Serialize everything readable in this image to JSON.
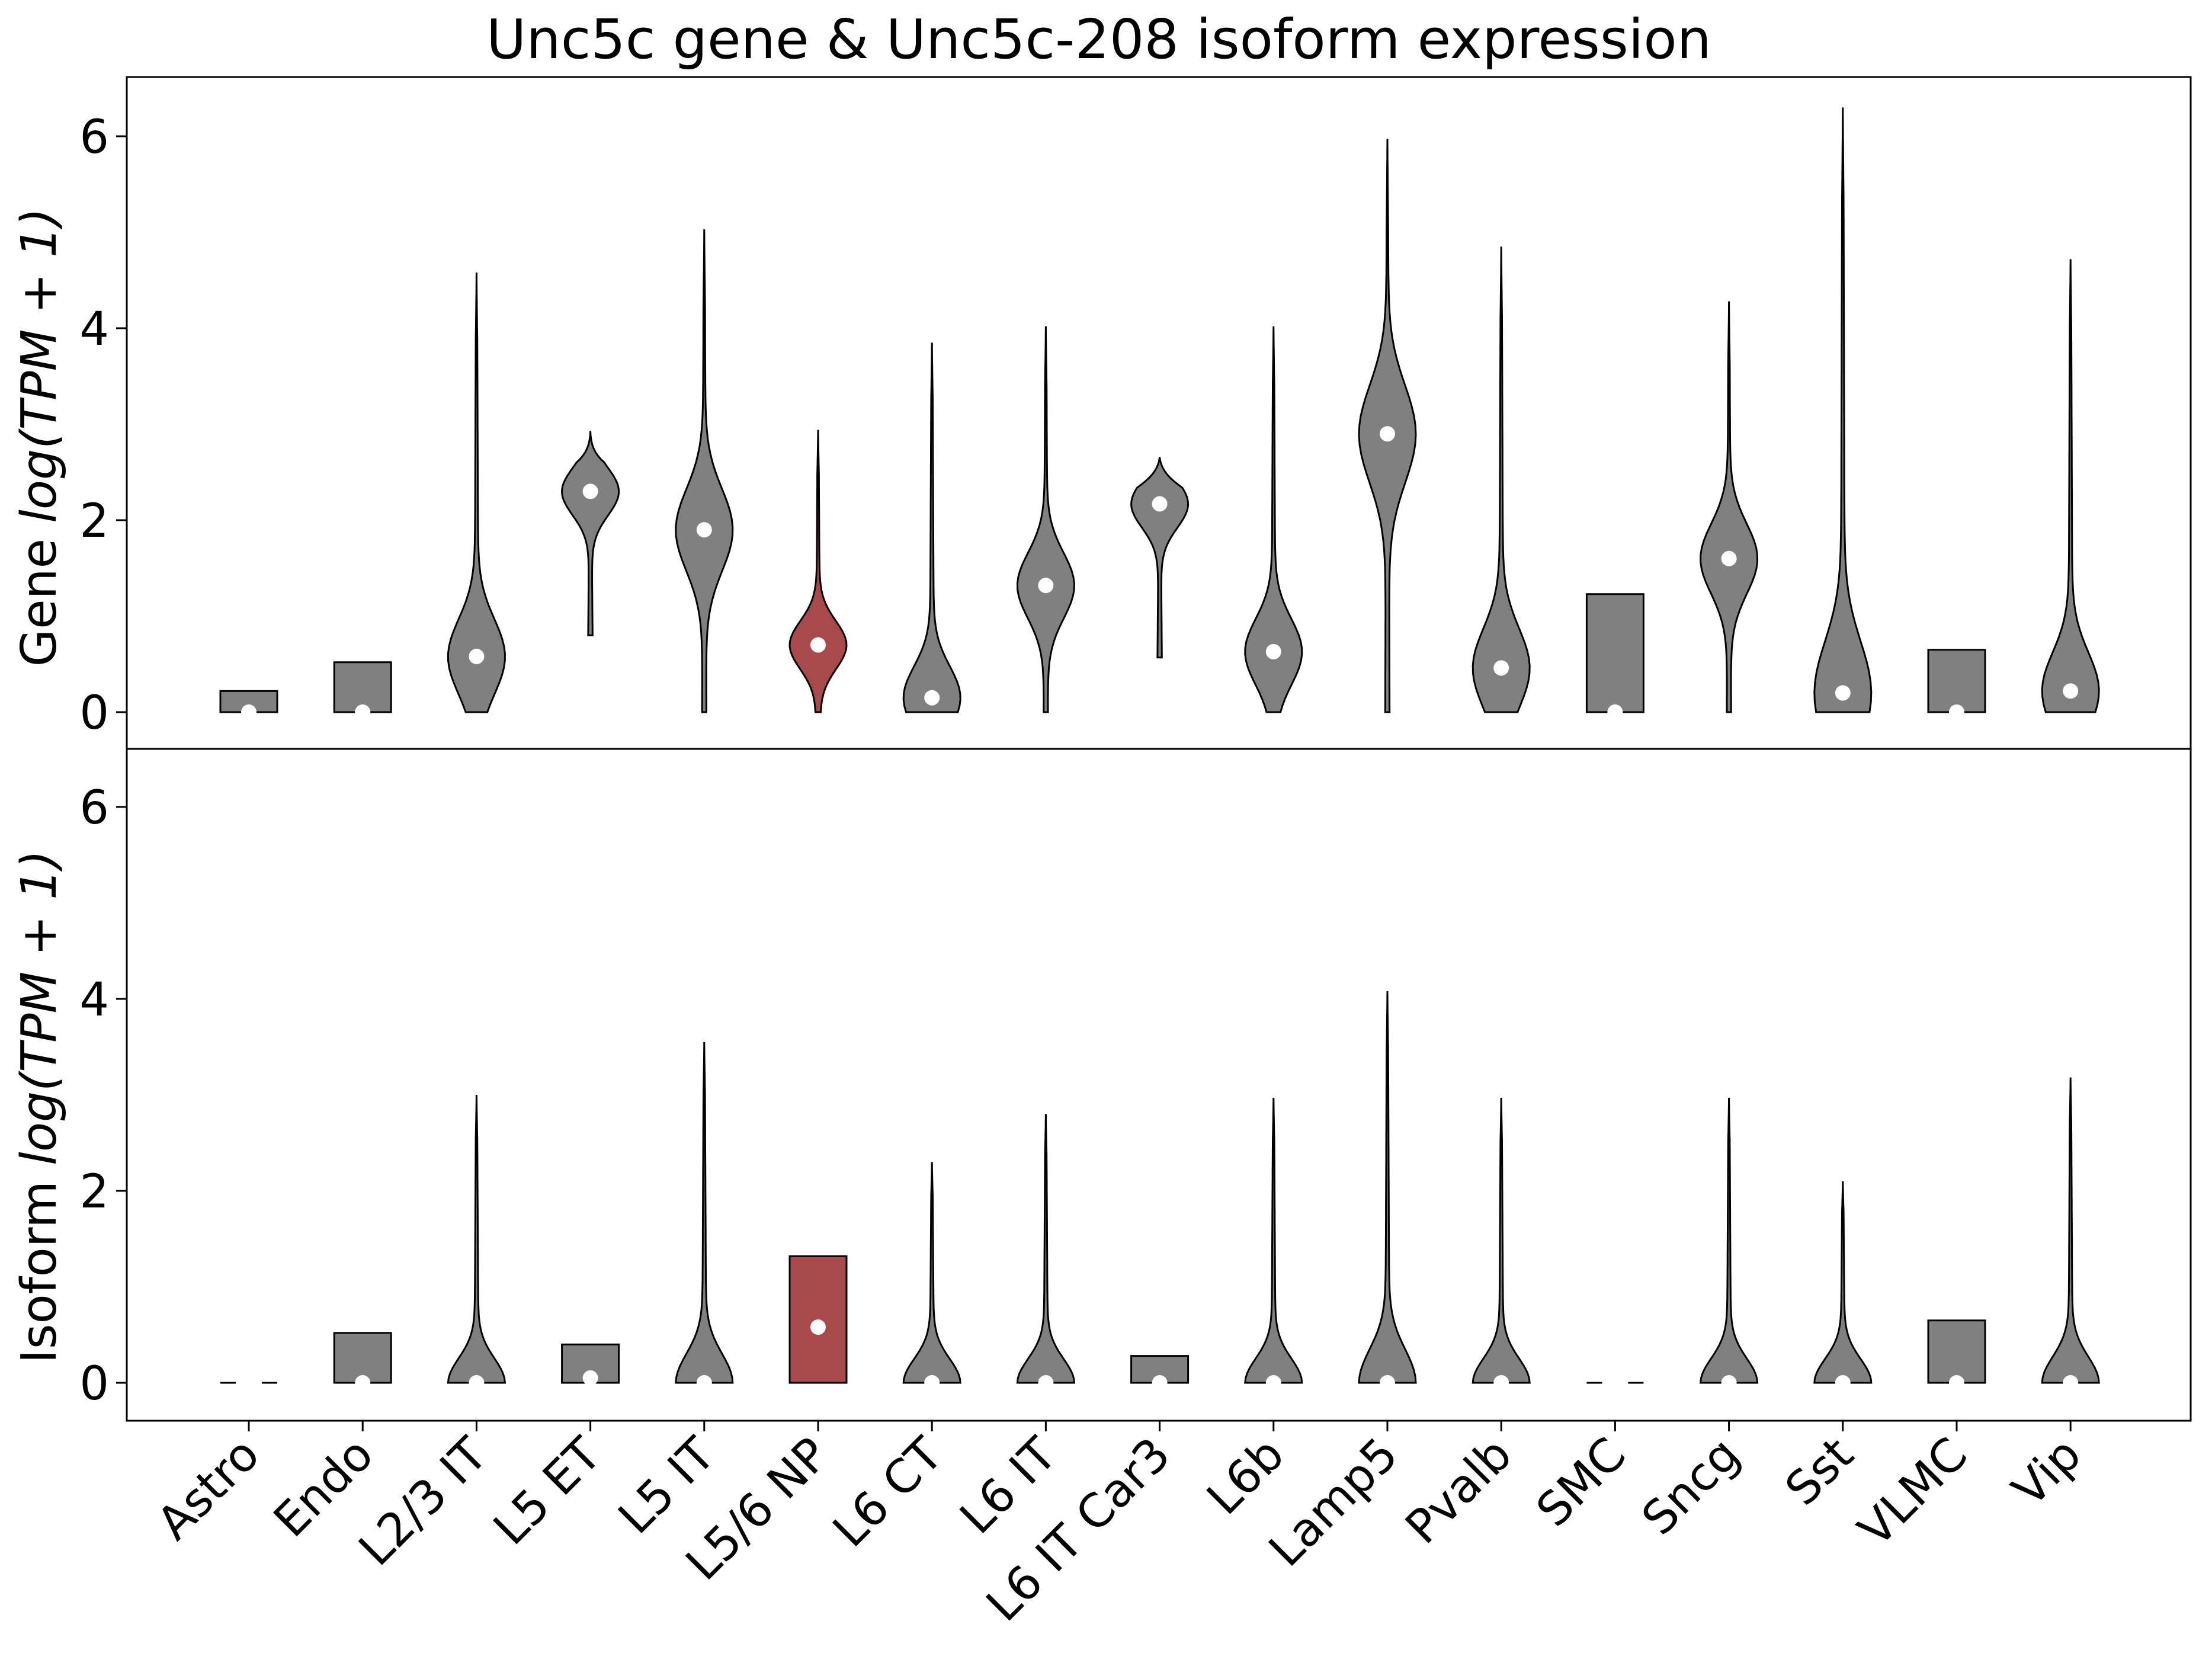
{
  "chart_data": [
    {
      "type": "violin",
      "title": "Unc5c gene & Unc5c-208 isoform expression",
      "panel": "gene",
      "ylabel_prefix": "Gene",
      "ylabel_math": "log(TPM + 1)",
      "ylim": [
        -0.4,
        6.6
      ],
      "yticks": [
        0,
        2,
        4,
        6
      ],
      "categories": [
        "Astro",
        "Endo",
        "L2/3 IT",
        "L5 ET",
        "L5 IT",
        "L5/6 NP",
        "L6 CT",
        "L6 IT",
        "L6 IT Car3",
        "L6b",
        "Lamp5",
        "Pvalb",
        "SMC",
        "Sncg",
        "Sst",
        "VLMC",
        "Vip"
      ],
      "highlight": "L5/6 NP",
      "medians": [
        0.0,
        0.0,
        0.58,
        2.3,
        1.9,
        0.7,
        0.15,
        1.32,
        2.17,
        0.63,
        2.9,
        0.46,
        0.0,
        1.6,
        0.2,
        0.0,
        0.22
      ],
      "ranges": [
        [
          0,
          0.22
        ],
        [
          0,
          0.52
        ],
        [
          0,
          4.58
        ],
        [
          0.8,
          2.92
        ],
        [
          0,
          5.03
        ],
        [
          0,
          2.94
        ],
        [
          0,
          3.85
        ],
        [
          0,
          4.02
        ],
        [
          0.57,
          2.65
        ],
        [
          0,
          4.02
        ],
        [
          0,
          5.97
        ],
        [
          0,
          4.85
        ],
        [
          0,
          1.23
        ],
        [
          0,
          4.28
        ],
        [
          0,
          6.3
        ],
        [
          0,
          0.65
        ],
        [
          0,
          4.72
        ]
      ]
    },
    {
      "type": "violin",
      "panel": "isoform",
      "ylabel_prefix": "Isoform",
      "ylabel_math": "log(TPM + 1)",
      "ylim": [
        -0.4,
        6.6
      ],
      "yticks": [
        0,
        2,
        4,
        6
      ],
      "categories": [
        "Astro",
        "Endo",
        "L2/3 IT",
        "L5 ET",
        "L5 IT",
        "L5/6 NP",
        "L6 CT",
        "L6 IT",
        "L6 IT Car3",
        "L6b",
        "Lamp5",
        "Pvalb",
        "SMC",
        "Sncg",
        "Sst",
        "VLMC",
        "Vip"
      ],
      "highlight": "L5/6 NP",
      "medians": [
        0.0,
        0.0,
        0.0,
        0.05,
        0.0,
        0.58,
        0.0,
        0.0,
        0.0,
        0.0,
        0.0,
        0.0,
        0.0,
        0.0,
        0.0,
        0.0,
        0.0
      ],
      "ranges": [
        [
          0,
          0
        ],
        [
          0,
          0.52
        ],
        [
          0,
          3.0
        ],
        [
          0,
          0.4
        ],
        [
          0,
          3.55
        ],
        [
          0,
          1.32
        ],
        [
          0,
          2.3
        ],
        [
          0,
          2.8
        ],
        [
          0,
          0.28
        ],
        [
          0,
          2.97
        ],
        [
          0,
          4.08
        ],
        [
          0,
          2.97
        ],
        [
          0,
          0
        ],
        [
          0,
          2.97
        ],
        [
          0,
          2.1
        ],
        [
          0,
          0.65
        ],
        [
          0,
          3.18
        ]
      ]
    }
  ],
  "colors": {
    "violin": "#808080",
    "highlight": "#a8494c",
    "outline": "#000000",
    "median": "#ffffff"
  }
}
